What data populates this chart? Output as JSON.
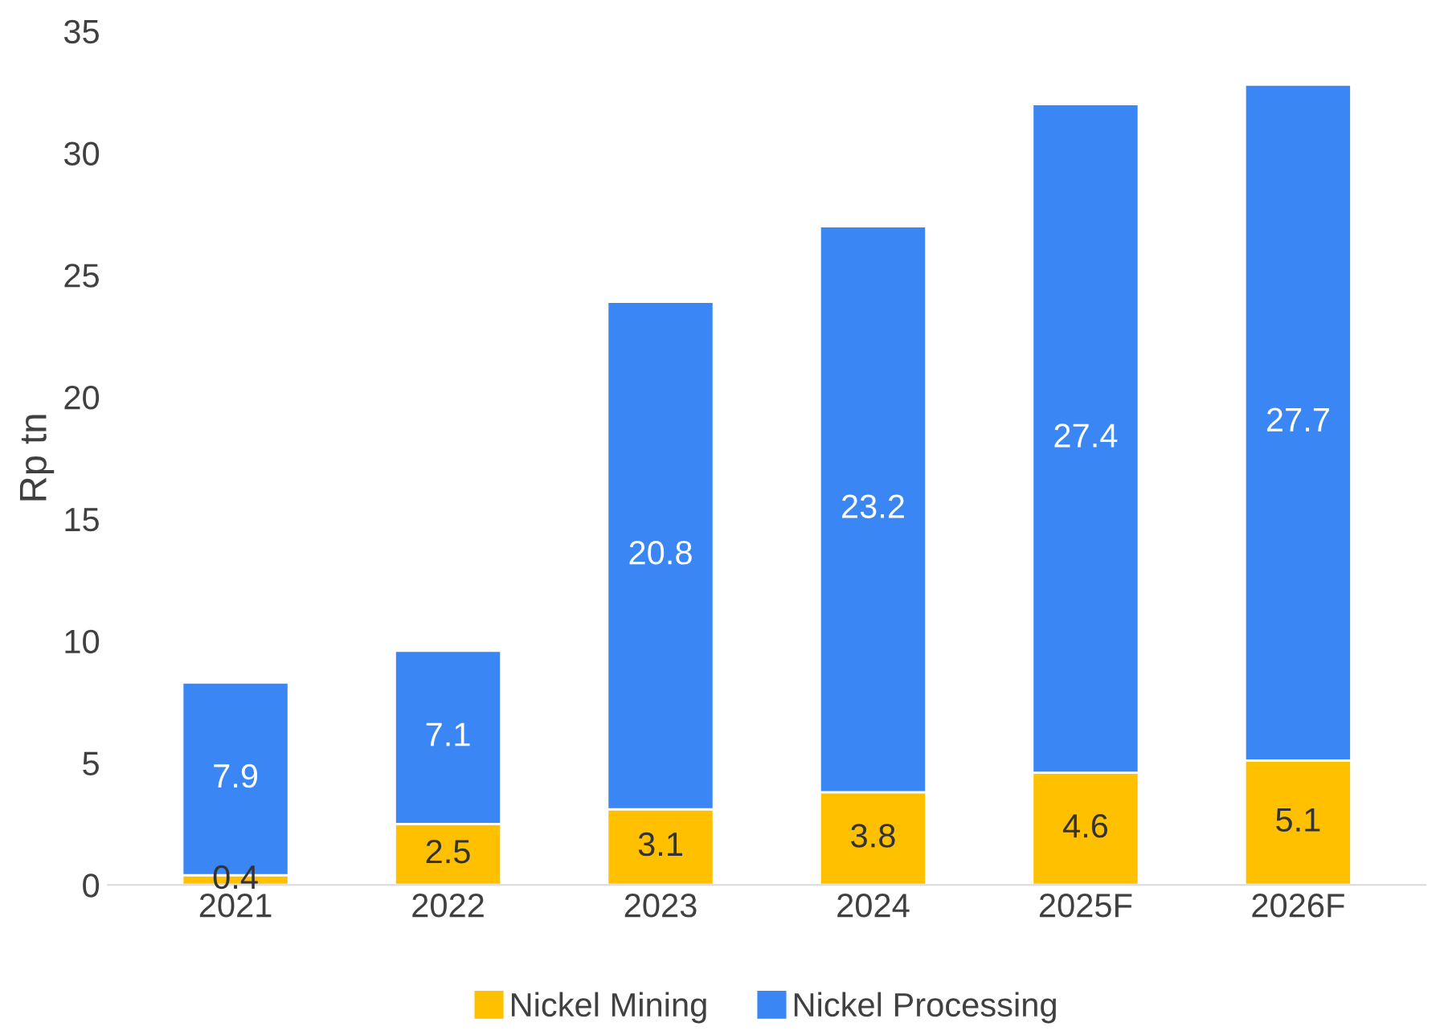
{
  "chart_data": {
    "type": "bar",
    "stacked": true,
    "ylabel": "Rp tn",
    "categories": [
      "2021",
      "2022",
      "2023",
      "2024",
      "2025F",
      "2026F"
    ],
    "series": [
      {
        "name": "Nickel Mining",
        "color": "#ffc000",
        "values": [
          0.4,
          2.5,
          3.1,
          3.8,
          4.6,
          5.1
        ]
      },
      {
        "name": "Nickel Processing",
        "color": "#3a86f5",
        "values": [
          7.9,
          7.1,
          20.8,
          23.2,
          27.4,
          27.7
        ]
      }
    ],
    "ylim": [
      0,
      35
    ],
    "yticks": [
      0,
      5,
      10,
      15,
      20,
      25,
      30,
      35
    ],
    "data_labels": true,
    "grid": false,
    "legend": "bottom"
  }
}
